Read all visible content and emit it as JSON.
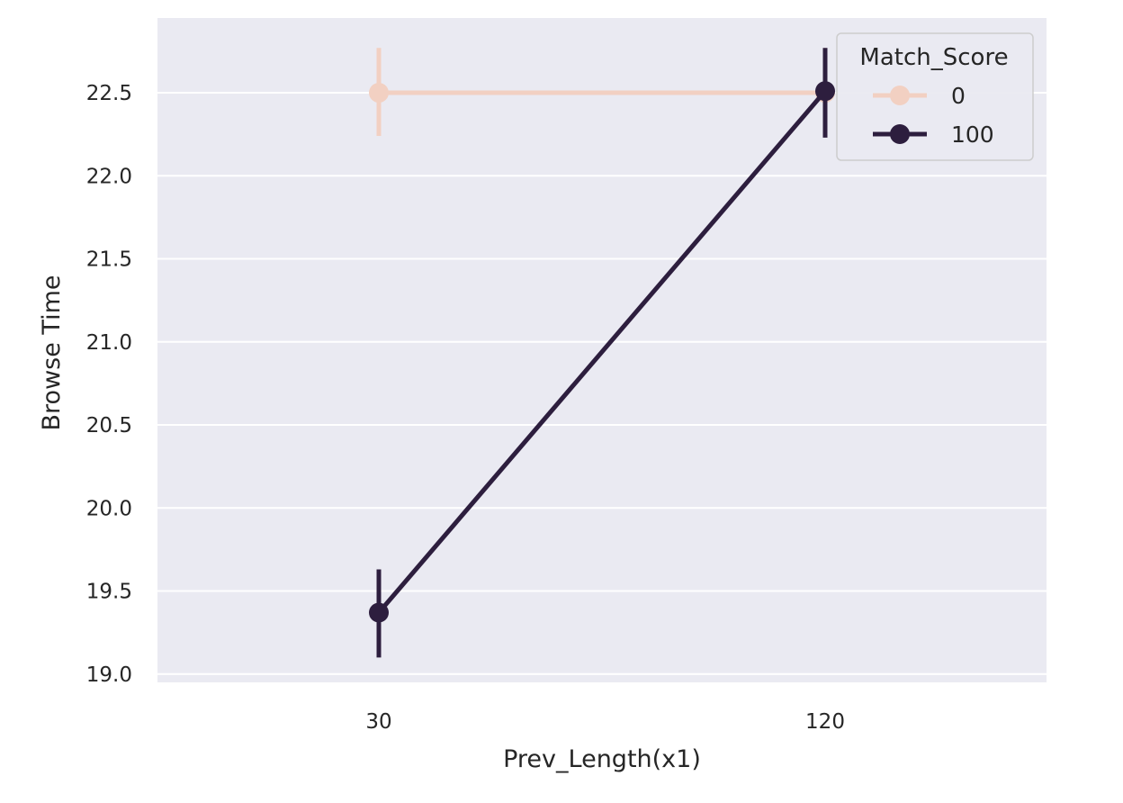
{
  "chart_data": {
    "type": "line",
    "xlabel": "Prev_Length(x1)",
    "ylabel": "Browse Time",
    "categories": [
      "30",
      "120"
    ],
    "ylim": [
      18.95,
      22.95
    ],
    "yticks": [
      19.0,
      19.5,
      20.0,
      20.5,
      21.0,
      21.5,
      22.0,
      22.5
    ],
    "ytick_labels": [
      "19.0",
      "19.5",
      "20.0",
      "20.5",
      "21.0",
      "21.5",
      "22.0",
      "22.5"
    ],
    "grid": true,
    "legend": {
      "title": "Match_Score",
      "position": "top-right",
      "entries": [
        "0",
        "100"
      ]
    },
    "series": [
      {
        "name": "0",
        "color": "#f2d0c2",
        "values": [
          22.5,
          22.5
        ],
        "error_low": [
          22.24,
          22.24
        ],
        "error_high": [
          22.77,
          22.77
        ]
      },
      {
        "name": "100",
        "color": "#2d1e3e",
        "values": [
          19.37,
          22.51
        ],
        "error_low": [
          19.1,
          22.23
        ],
        "error_high": [
          19.63,
          22.77
        ]
      }
    ],
    "background_color": "#eaeaf2",
    "grid_color": "#ffffff"
  }
}
